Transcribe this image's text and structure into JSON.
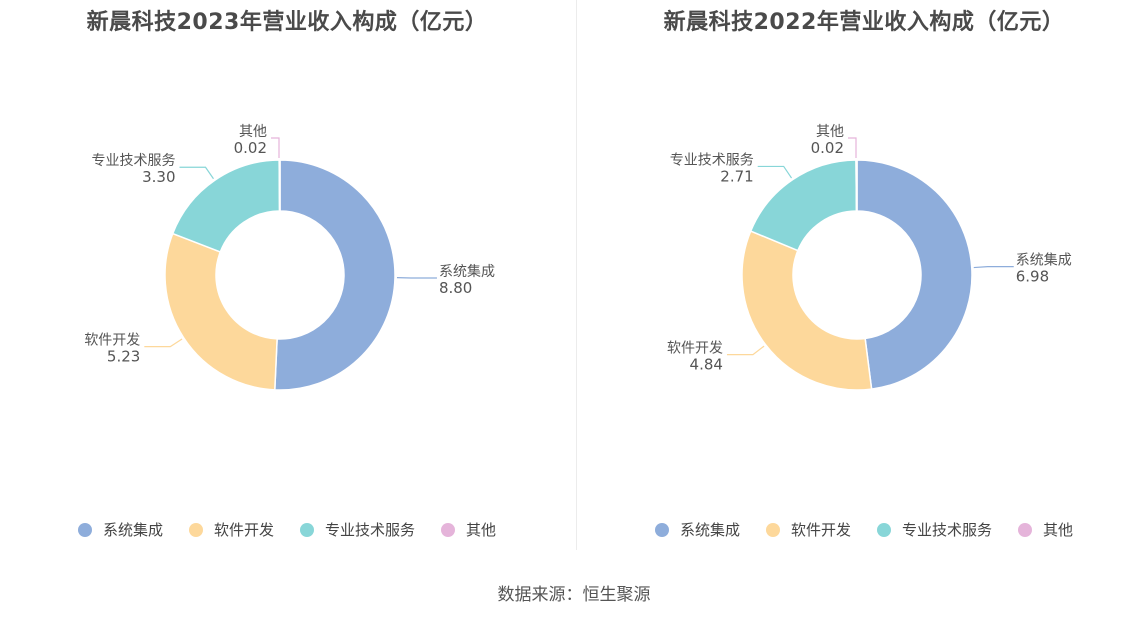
{
  "source": "数据来源：恒生聚源",
  "chart_data": [
    {
      "type": "pie",
      "title": "新晨科技2023年营业收入构成（亿元）",
      "categories": [
        "系统集成",
        "软件开发",
        "专业技术服务",
        "其他"
      ],
      "values": [
        8.8,
        5.23,
        3.3,
        0.02
      ],
      "value_labels": [
        "8.80",
        "5.23",
        "3.30",
        "0.02"
      ],
      "colors": [
        "#8eaddb",
        "#fdd89b",
        "#88d6d8",
        "#e5b4da"
      ],
      "legend_position": "bottom"
    },
    {
      "type": "pie",
      "title": "新晨科技2022年营业收入构成（亿元）",
      "categories": [
        "系统集成",
        "软件开发",
        "专业技术服务",
        "其他"
      ],
      "values": [
        6.98,
        4.84,
        2.71,
        0.02
      ],
      "value_labels": [
        "6.98",
        "4.84",
        "2.71",
        "0.02"
      ],
      "colors": [
        "#8eaddb",
        "#fdd89b",
        "#88d6d8",
        "#e5b4da"
      ],
      "legend_position": "bottom"
    }
  ]
}
